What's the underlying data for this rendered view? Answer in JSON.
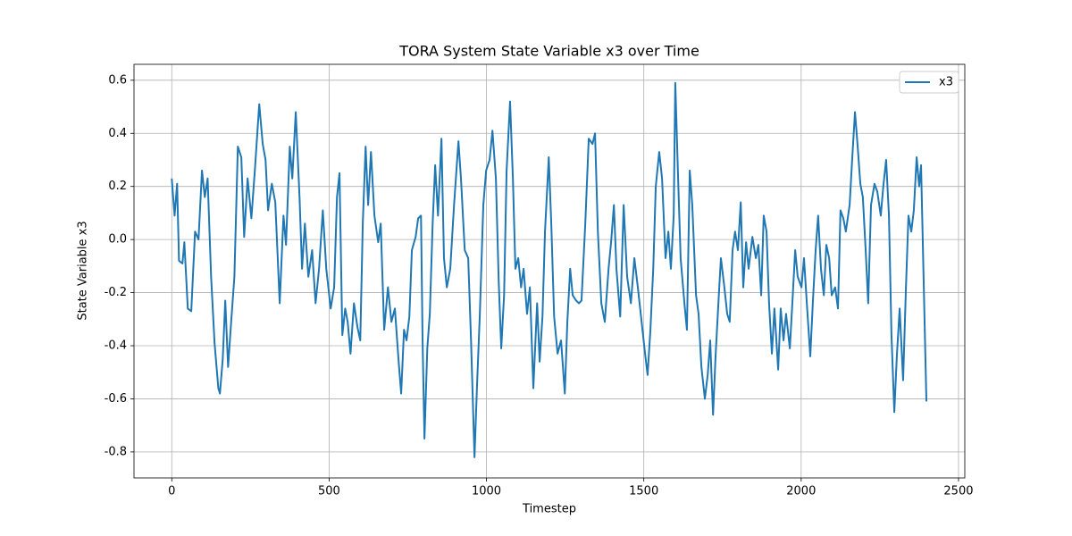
{
  "chart_data": {
    "type": "line",
    "title": "TORA System State Variable x3 over Time",
    "xlabel": "Timestep",
    "ylabel": "State Variable x3",
    "xlim": [
      -120,
      2520
    ],
    "ylim": [
      -0.898,
      0.66
    ],
    "xticks": [
      0,
      500,
      1000,
      1500,
      2000,
      2500
    ],
    "yticks": [
      -0.8,
      -0.6,
      -0.4,
      -0.2,
      {
        "value": 0,
        "label": "0.0"
      },
      0.2,
      0.4,
      0.6
    ],
    "grid": true,
    "legend": "upper right",
    "x": [
      0,
      9,
      17,
      23,
      34,
      40,
      51,
      62,
      74,
      85,
      96,
      105,
      114,
      125,
      136,
      148,
      153,
      162,
      170,
      179,
      187,
      199,
      210,
      221,
      230,
      241,
      253,
      264,
      278,
      289,
      298,
      306,
      318,
      329,
      343,
      355,
      363,
      375,
      383,
      394,
      406,
      414,
      423,
      434,
      446,
      457,
      468,
      480,
      491,
      505,
      516,
      525,
      533,
      542,
      551,
      559,
      568,
      579,
      590,
      599,
      607,
      616,
      624,
      633,
      644,
      656,
      664,
      675,
      687,
      698,
      709,
      721,
      729,
      738,
      746,
      755,
      763,
      775,
      783,
      792,
      797,
      803,
      812,
      820,
      829,
      837,
      846,
      857,
      865,
      874,
      885,
      897,
      911,
      919,
      931,
      942,
      951,
      962,
      970,
      979,
      990,
      999,
      1010,
      1019,
      1030,
      1039,
      1047,
      1056,
      1064,
      1075,
      1084,
      1092,
      1101,
      1110,
      1118,
      1129,
      1138,
      1149,
      1161,
      1169,
      1178,
      1186,
      1198,
      1206,
      1215,
      1226,
      1237,
      1249,
      1257,
      1266,
      1274,
      1285,
      1294,
      1302,
      1314,
      1325,
      1337,
      1345,
      1354,
      1365,
      1376,
      1388,
      1396,
      1405,
      1413,
      1425,
      1436,
      1447,
      1459,
      1470,
      1481,
      1493,
      1504,
      1512,
      1521,
      1530,
      1538,
      1549,
      1558,
      1569,
      1578,
      1586,
      1595,
      1600,
      1609,
      1617,
      1629,
      1637,
      1646,
      1654,
      1666,
      1674,
      1683,
      1694,
      1703,
      1711,
      1720,
      1728,
      1737,
      1745,
      1756,
      1765,
      1773,
      1782,
      1790,
      1799,
      1808,
      1816,
      1825,
      1833,
      1845,
      1856,
      1864,
      1873,
      1881,
      1890,
      1898,
      1907,
      1915,
      1927,
      1935,
      1944,
      1952,
      1964,
      1972,
      1981,
      1989,
      2001,
      2009,
      2018,
      2029,
      2037,
      2046,
      2054,
      2063,
      2072,
      2080,
      2089,
      2097,
      2108,
      2117,
      2125,
      2134,
      2142,
      2154,
      2162,
      2171,
      2179,
      2188,
      2196,
      2205,
      2213,
      2222,
      2233,
      2242,
      2253,
      2261,
      2270,
      2279,
      2287,
      2296,
      2304,
      2313,
      2324,
      2333,
      2341,
      2350,
      2358,
      2367,
      2375,
      2381,
      2389,
      2398
    ],
    "series": [
      {
        "name": "x3",
        "color": "#1f77b4",
        "values": [
          0.23,
          0.09,
          0.21,
          -0.08,
          -0.09,
          -0.01,
          -0.26,
          -0.27,
          0.03,
          0.0,
          0.26,
          0.16,
          0.23,
          -0.14,
          -0.39,
          -0.56,
          -0.58,
          -0.45,
          -0.23,
          -0.48,
          -0.34,
          -0.14,
          0.35,
          0.31,
          0.01,
          0.23,
          0.08,
          0.26,
          0.51,
          0.36,
          0.3,
          0.11,
          0.21,
          0.14,
          -0.24,
          0.09,
          -0.02,
          0.35,
          0.23,
          0.48,
          0.16,
          -0.11,
          0.06,
          -0.14,
          -0.04,
          -0.24,
          -0.11,
          0.11,
          -0.11,
          -0.26,
          -0.18,
          0.16,
          0.25,
          -0.36,
          -0.26,
          -0.31,
          -0.43,
          -0.24,
          -0.33,
          -0.38,
          0.06,
          0.35,
          0.13,
          0.33,
          0.09,
          -0.01,
          0.06,
          -0.34,
          -0.18,
          -0.31,
          -0.26,
          -0.46,
          -0.58,
          -0.34,
          -0.38,
          -0.29,
          -0.04,
          0.01,
          0.08,
          0.09,
          -0.38,
          -0.75,
          -0.41,
          -0.28,
          0.06,
          0.28,
          0.09,
          0.38,
          -0.07,
          -0.18,
          -0.11,
          0.13,
          0.37,
          0.23,
          -0.04,
          -0.07,
          -0.38,
          -0.82,
          -0.55,
          -0.28,
          0.13,
          0.26,
          0.3,
          0.41,
          0.23,
          -0.16,
          -0.41,
          -0.21,
          0.26,
          0.52,
          0.23,
          -0.11,
          -0.07,
          -0.18,
          -0.11,
          -0.28,
          -0.18,
          -0.56,
          -0.24,
          -0.46,
          -0.29,
          0.03,
          0.31,
          0.06,
          -0.29,
          -0.43,
          -0.38,
          -0.58,
          -0.31,
          -0.11,
          -0.21,
          -0.23,
          -0.24,
          -0.23,
          0.06,
          0.38,
          0.36,
          0.4,
          0.03,
          -0.24,
          -0.31,
          -0.11,
          -0.01,
          0.13,
          -0.11,
          -0.29,
          0.13,
          -0.14,
          -0.24,
          -0.07,
          -0.18,
          -0.31,
          -0.43,
          -0.51,
          -0.34,
          -0.11,
          0.2,
          0.33,
          0.23,
          -0.07,
          0.03,
          -0.11,
          0.09,
          0.59,
          0.23,
          -0.07,
          -0.24,
          -0.34,
          0.26,
          0.13,
          -0.21,
          -0.28,
          -0.48,
          -0.6,
          -0.51,
          -0.38,
          -0.66,
          -0.44,
          -0.24,
          -0.07,
          -0.18,
          -0.28,
          -0.31,
          -0.04,
          0.03,
          -0.04,
          0.14,
          -0.18,
          -0.01,
          -0.11,
          0.01,
          -0.07,
          -0.02,
          -0.21,
          0.09,
          0.03,
          -0.24,
          -0.43,
          -0.26,
          -0.49,
          -0.26,
          -0.38,
          -0.28,
          -0.41,
          -0.24,
          -0.04,
          -0.14,
          -0.18,
          -0.07,
          -0.24,
          -0.44,
          -0.24,
          -0.04,
          0.09,
          -0.11,
          -0.21,
          -0.02,
          -0.07,
          -0.21,
          -0.18,
          -0.26,
          0.11,
          0.08,
          0.03,
          0.13,
          0.3,
          0.48,
          0.36,
          0.21,
          0.16,
          -0.04,
          -0.24,
          0.13,
          0.21,
          0.18,
          0.09,
          0.2,
          0.3,
          0.09,
          -0.36,
          -0.65,
          -0.44,
          -0.26,
          -0.53,
          -0.18,
          0.09,
          0.03,
          0.11,
          0.31,
          0.2,
          0.28,
          -0.14,
          -0.61
        ]
      }
    ]
  }
}
